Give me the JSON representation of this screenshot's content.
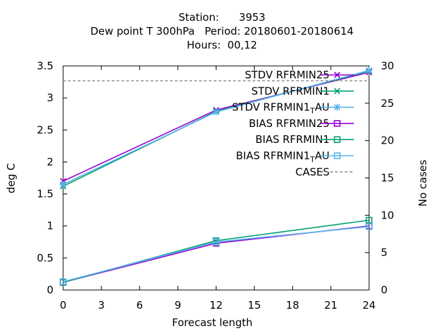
{
  "chart_data": {
    "type": "line",
    "title_lines": [
      "Station:      3953",
      "Dew point T 300hPa   Period: 20180601-20180614",
      "Hours:  00,12"
    ],
    "xlabel": "Forecast length",
    "ylabel": "deg C",
    "y2label": "No cases",
    "x": [
      0,
      12,
      24
    ],
    "xlim": [
      0,
      24
    ],
    "ylim": [
      0,
      3.5
    ],
    "y2lim": [
      0,
      30
    ],
    "xticks": [
      "0",
      "3",
      "6",
      "9",
      "12",
      "15",
      "18",
      "21",
      "24"
    ],
    "yticks": [
      "0",
      "0.5",
      "1",
      "1.5",
      "2",
      "2.5",
      "3",
      "3.5"
    ],
    "y2ticks": [
      "0",
      "5",
      "10",
      "15",
      "20",
      "25",
      "30"
    ],
    "grid": false,
    "legend_position": "top-right",
    "series": [
      {
        "name": "STDV RFRMIN25",
        "marker": "x",
        "color": "#9400d3",
        "values": [
          1.7,
          2.81,
          3.4
        ]
      },
      {
        "name": "STDV RFRMIN1",
        "marker": "x",
        "color": "#009e73",
        "values": [
          1.62,
          2.79,
          3.42
        ]
      },
      {
        "name": "STDV RFRMIN1_TAU",
        "marker": "star",
        "color": "#56b4e9",
        "values": [
          1.65,
          2.78,
          3.43
        ]
      },
      {
        "name": "BIAS RFRMIN25",
        "marker": "square",
        "color": "#9400d3",
        "values": [
          0.12,
          0.73,
          1.0
        ]
      },
      {
        "name": "BIAS RFRMIN1",
        "marker": "square",
        "color": "#009e73",
        "values": [
          0.12,
          0.77,
          1.09
        ]
      },
      {
        "name": "BIAS RFRMIN1_TAU",
        "marker": "square",
        "color": "#56b4e9",
        "values": [
          0.13,
          0.75,
          0.99
        ]
      },
      {
        "name": "CASES",
        "axis": "y2",
        "dashed": true,
        "color": "#808080",
        "values": [
          28,
          28,
          28
        ]
      }
    ],
    "legend_labels": [
      {
        "main": "STDV RFRMIN25",
        "sub": ""
      },
      {
        "main": "STDV RFRMIN1",
        "sub": ""
      },
      {
        "main": "STDV RFRMIN1",
        "sub": "T",
        "rest": "AU"
      },
      {
        "main": "BIAS RFRMIN25",
        "sub": ""
      },
      {
        "main": "BIAS RFRMIN1",
        "sub": ""
      },
      {
        "main": "BIAS RFRMIN1",
        "sub": "T",
        "rest": "AU"
      },
      {
        "main": "CASES",
        "sub": ""
      }
    ]
  }
}
